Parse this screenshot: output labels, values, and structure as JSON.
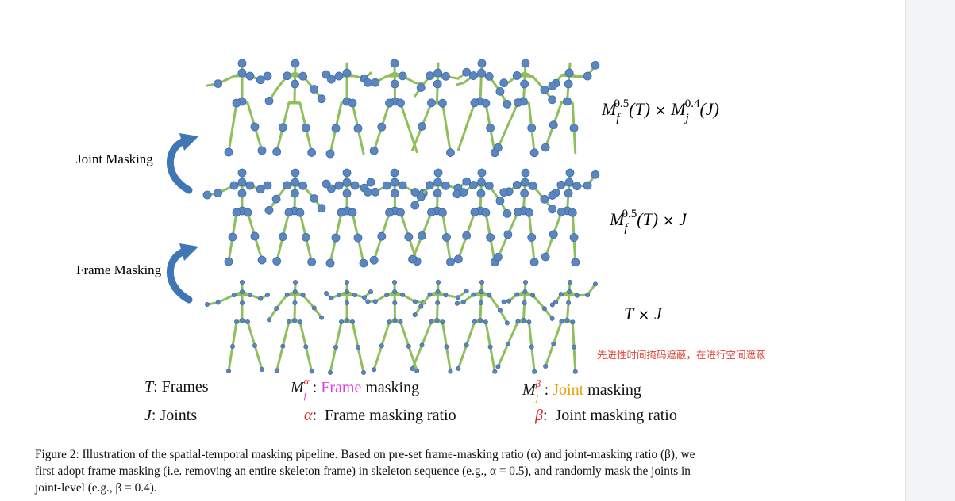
{
  "labels": {
    "joint_masking": "Joint Masking",
    "frame_masking": "Frame Masking"
  },
  "formulas": {
    "top": {
      "m1": "M",
      "sub1": "f",
      "sup1": "0.5",
      "arg1": "(T)",
      "times": "×",
      "m2": "M",
      "sub2": "j",
      "sup2": "0.4",
      "arg2": "(J)"
    },
    "mid": {
      "m": "M",
      "sub": "f",
      "sup": "0.5",
      "arg": "(T)",
      "times": "×",
      "j": "J"
    },
    "bottom": {
      "t": "T",
      "times": "×",
      "j": "J"
    }
  },
  "annotation": "先进性时间掩码遮蔽，在进行空间遮蔽",
  "legend": {
    "t": {
      "sym": "T",
      "text": ": Frames"
    },
    "j": {
      "sym": "J",
      "text": ": Joints"
    },
    "mf": {
      "sym": "M",
      "sub": "f",
      "sup": "α",
      "colon": ":",
      "word": "Frame",
      "rest": " masking"
    },
    "mj": {
      "sym": "M",
      "sub": "j",
      "sup": "β",
      "colon": ":",
      "word": "Joint",
      "rest": " masking"
    },
    "alpha": {
      "sym": "α",
      "text": ":  Frame masking ratio"
    },
    "beta": {
      "sym": "β",
      "text": ":  Joint masking ratio"
    }
  },
  "caption": {
    "line1": "Figure 2: Illustration of the spatial-temporal masking pipeline. Based on pre-set frame-masking ratio (α) and joint-masking ratio (β), we",
    "line2": "first adopt frame masking (i.e. removing an entire skeleton frame) in skeleton sequence (e.g., α = 0.5), and randomly mask the joints in",
    "line3": "joint-level (e.g., β = 0.4)."
  },
  "colors": {
    "bone": "#8fbf5a",
    "joint": "#5b86c0",
    "joint_outline": "#3f6aa6",
    "arrow": "#3f76b4",
    "frame_word": "#e040e0",
    "joint_word": "#e8a000",
    "greek": "#e02020",
    "annotation": "#e0453a"
  }
}
